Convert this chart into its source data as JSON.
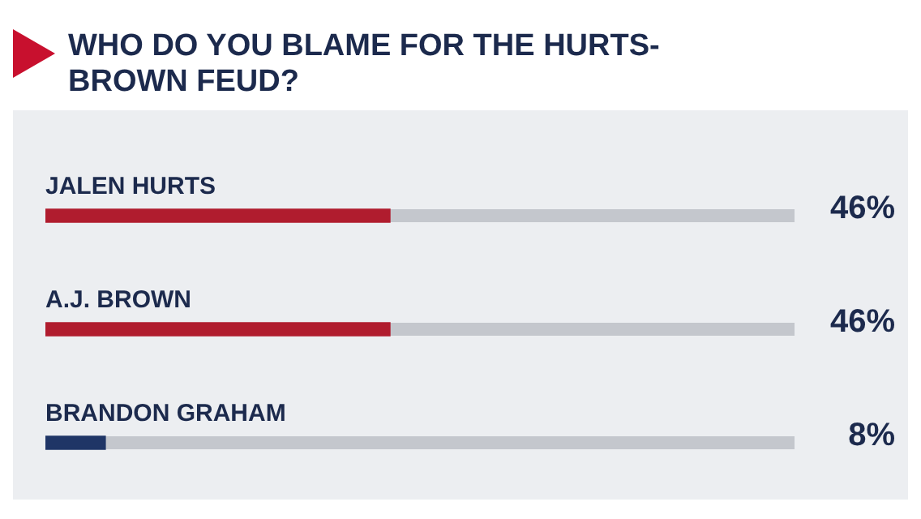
{
  "chart_data": {
    "type": "bar",
    "orientation": "horizontal",
    "title": "WHO DO YOU BLAME FOR THE HURTS-BROWN FEUD?",
    "categories": [
      "JALEN HURTS",
      "A.J. BROWN",
      "BRANDON GRAHAM"
    ],
    "values": [
      46,
      46,
      8
    ],
    "colors": [
      "#b01c2e",
      "#b01c2e",
      "#1f3566"
    ],
    "value_labels": [
      "46%",
      "46%",
      "8%"
    ],
    "xlim": [
      0,
      100
    ],
    "legend": false
  }
}
